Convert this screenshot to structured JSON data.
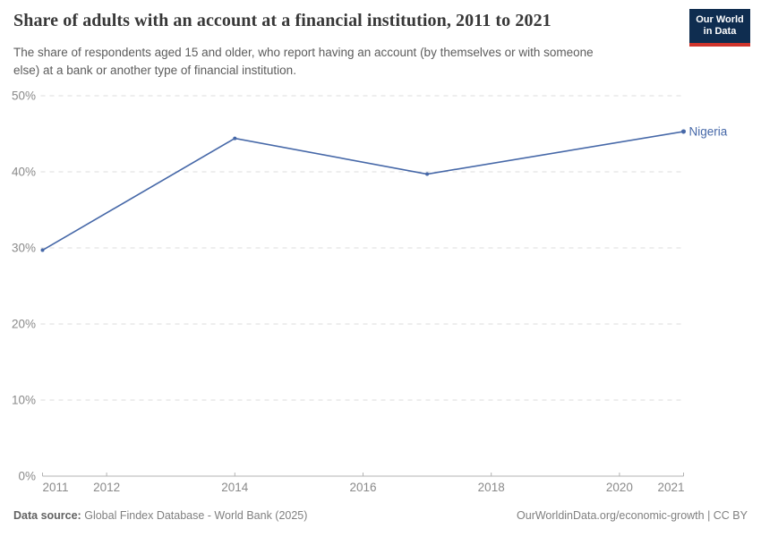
{
  "header": {
    "title": "Share of adults with an account at a financial institution, 2011 to 2021",
    "subtitle_lines": [
      "The share of respondents aged 15 and older, who report having an account (by themselves or with someone",
      "else) at a bank or another type of financial institution."
    ],
    "logo_line1": "Our World",
    "logo_line2": "in Data",
    "logo_bg_color": "#0f2d50",
    "logo_accent_color": "#cf342c"
  },
  "chart_data": {
    "type": "line",
    "title": "Share of adults with an account at a financial institution, 2011 to 2021",
    "xlabel": "",
    "ylabel": "",
    "xlim": [
      2011,
      2021
    ],
    "ylim": [
      0,
      50
    ],
    "yticks": [
      0,
      10,
      20,
      30,
      40,
      50
    ],
    "ytick_format": "{v}%",
    "xticks": [
      2011,
      2012,
      2014,
      2016,
      2018,
      2020,
      2021
    ],
    "grid": "horizontal-dashed",
    "legend_position": "end-of-line",
    "series": [
      {
        "name": "Nigeria",
        "color": "#4668a8",
        "x": [
          2011,
          2014,
          2017,
          2021
        ],
        "y": [
          29.7,
          44.4,
          39.7,
          45.3
        ]
      }
    ],
    "colors": {
      "grid": "#dcdcdc",
      "axis": "#b3b3b3",
      "tick_label": "#8a8a8a"
    }
  },
  "footer": {
    "source_label": "Data source:",
    "source_value": "Global Findex Database - World Bank (2025)",
    "license": "OurWorldinData.org/economic-growth | CC BY"
  }
}
